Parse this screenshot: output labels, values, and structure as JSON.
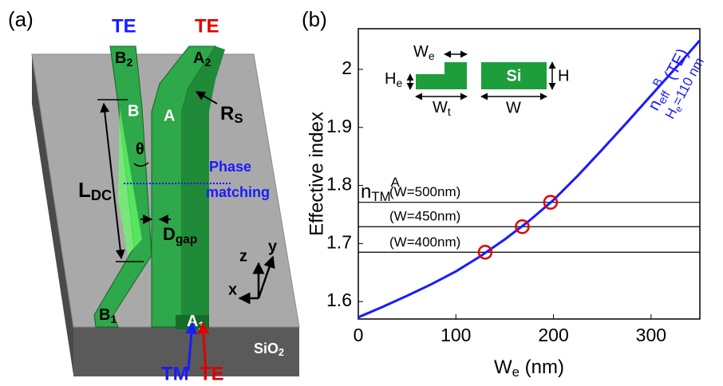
{
  "diagram": {
    "panel_label": "(a)",
    "output_left": "TE",
    "output_right": "TE",
    "ports": [
      {
        "main": "B",
        "sub": "2"
      },
      {
        "main": "A",
        "sub": "2"
      },
      {
        "main": "B",
        "sub": "1"
      },
      {
        "main": "A",
        "sub": "1"
      }
    ],
    "arm_b": "B",
    "arm_a": "A",
    "bend_radius": {
      "main": "R",
      "sub": "S"
    },
    "coupler_length": {
      "main": "L",
      "sub": "DC"
    },
    "angle": "θ",
    "phase_line": [
      "Phase",
      "matching"
    ],
    "gap": {
      "main": "D",
      "sub": "gap"
    },
    "axes": [
      "z",
      "y",
      "x"
    ],
    "substrate": {
      "main": "SiO",
      "sub": "2"
    },
    "input_left": "TM",
    "input_right": "TE"
  },
  "chart_data": {
    "type": "line",
    "panel_label": "(b)",
    "x_label": {
      "main": "W",
      "sub": "e",
      "rest": " (nm)"
    },
    "y_label": "Effective index",
    "x": [
      0,
      25,
      50,
      75,
      100,
      125,
      150,
      175,
      200,
      225,
      250,
      275,
      300,
      325,
      350
    ],
    "series": [
      {
        "color": "#1a1aff",
        "values": [
          1.573,
          1.591,
          1.61,
          1.63,
          1.652,
          1.678,
          1.707,
          1.739,
          1.775,
          1.817,
          1.862,
          1.908,
          1.955,
          2.002,
          2.05
        ]
      }
    ],
    "curve_label": {
      "main": "n",
      "sub": "eff",
      "sup": "B",
      "rest": " (TE)",
      "line2_main": "H",
      "line2_sub": "e",
      "line2_rest": "=110 nm"
    },
    "reference_title": {
      "main": "n",
      "sub": "TM",
      "sup": "A"
    },
    "reference_lines": [
      {
        "label": "(W=500nm)",
        "value": 1.771,
        "cross_x": 197
      },
      {
        "label": "(W=450nm)",
        "value": 1.729,
        "cross_x": 168
      },
      {
        "label": "(W=400nm)",
        "value": 1.685,
        "cross_x": 130
      }
    ],
    "reference_color": "#000000",
    "marker_color": "#e00000",
    "inset": {
      "we": {
        "main": "W",
        "sub": "e"
      },
      "he": {
        "main": "H",
        "sub": "e"
      },
      "wt": {
        "main": "W",
        "sub": "t"
      },
      "si": "Si",
      "h": "H",
      "w": "W",
      "color": "#1e9e3a"
    },
    "xlim": [
      0,
      350
    ],
    "ylim": [
      1.57,
      2.07
    ],
    "xticks": [
      0,
      100,
      200,
      300
    ],
    "yticks": [
      1.6,
      1.7,
      1.8,
      1.9,
      2
    ]
  }
}
